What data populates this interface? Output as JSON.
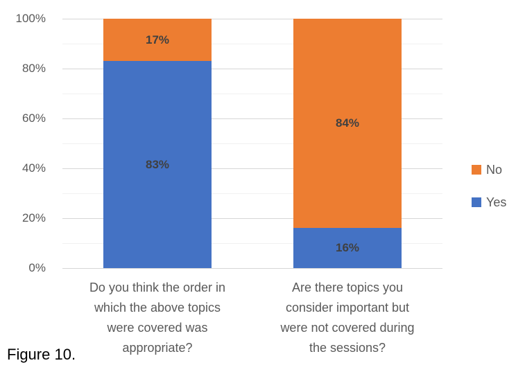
{
  "figure": {
    "caption": "Figure 10."
  },
  "chart_data": {
    "type": "bar",
    "stacked": true,
    "title": "",
    "categories": [
      "Do you think the order in which the above topics were covered was appropriate?",
      "Are there topics you consider important but were not covered during the sessions?"
    ],
    "category_lines": [
      [
        "Do you think the order in",
        "which the above topics",
        "were covered was",
        "appropriate?"
      ],
      [
        "Are there topics you",
        "consider important but",
        "were not covered during",
        "the sessions?"
      ]
    ],
    "series": [
      {
        "name": "Yes",
        "color": "#4472C4",
        "values": [
          83,
          16
        ],
        "data_labels": [
          "83%",
          "16%"
        ]
      },
      {
        "name": "No",
        "color": "#ED7D31",
        "values": [
          17,
          84
        ],
        "data_labels": [
          "17%",
          "84%"
        ]
      }
    ],
    "y_axis": {
      "ticks": [
        "0%",
        "20%",
        "40%",
        "60%",
        "80%",
        "100%"
      ],
      "min": 0,
      "max": 100,
      "major_unit": 20,
      "minor_unit": 10
    },
    "grid": {
      "horizontal_major": true,
      "horizontal_minor": true,
      "vertical": false
    },
    "legend": {
      "position": "right",
      "entries": [
        {
          "label": "No",
          "color": "#ED7D31"
        },
        {
          "label": "Yes",
          "color": "#4472C4"
        }
      ]
    }
  },
  "colors": {
    "series_yes": "#4472C4",
    "series_no": "#ED7D31",
    "data_label_text": "#404040",
    "axis_text": "#595959",
    "grid_major": "#D6D6D6",
    "grid_minor": "#F1F1F1",
    "background": "#FFFFFF",
    "caption_text": "#000000"
  }
}
